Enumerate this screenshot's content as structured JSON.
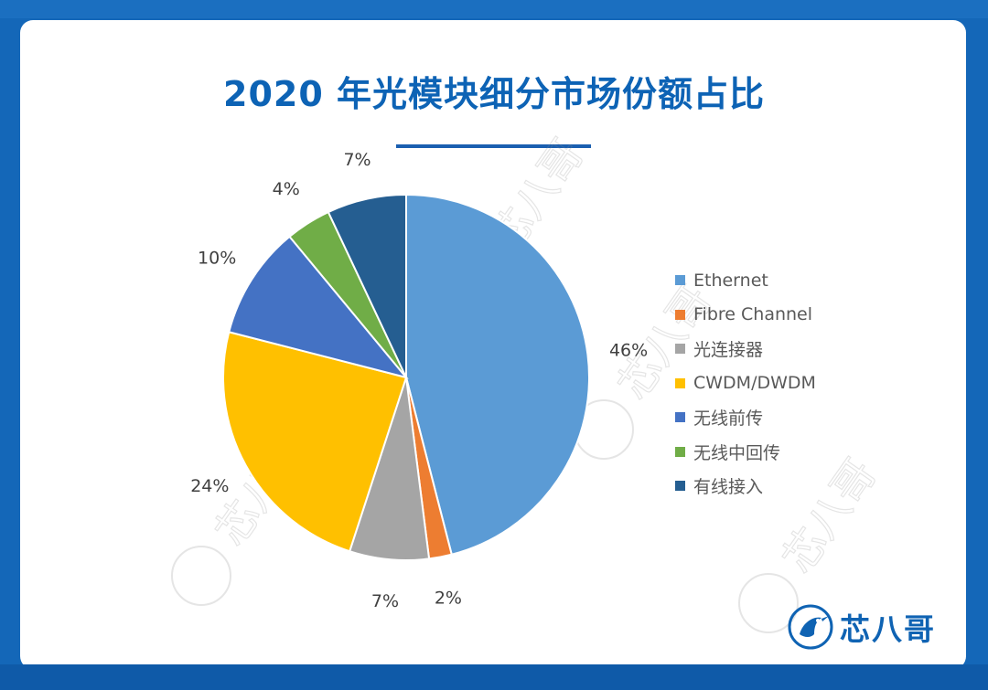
{
  "title": "2020 年光模块细分市场份额占比",
  "colors": {
    "background": "#1467b8",
    "title": "#0d63b5",
    "label": "#404040"
  },
  "chart_data": {
    "type": "pie",
    "title": "2020 年光模块细分市场份额占比",
    "legend_position": "right",
    "slices": [
      {
        "name": "Ethernet",
        "value": 46,
        "label": "46%",
        "color": "#5b9bd5"
      },
      {
        "name": "Fibre Channel",
        "value": 2,
        "label": "2%",
        "color": "#ed7d31"
      },
      {
        "name": "光连接器",
        "value": 7,
        "label": "7%",
        "color": "#a5a5a5"
      },
      {
        "name": "CWDM/DWDM",
        "value": 24,
        "label": "24%",
        "color": "#ffc000"
      },
      {
        "name": "无线前传",
        "value": 10,
        "label": "10%",
        "color": "#4472c4"
      },
      {
        "name": "无线中回传",
        "value": 4,
        "label": "4%",
        "color": "#70ad47"
      },
      {
        "name": "有线接入",
        "value": 7,
        "label": "7%",
        "color": "#255e91"
      }
    ]
  },
  "watermark": "芯八哥",
  "logo": {
    "text": "芯八哥",
    "icon": "kingfisher-bird-icon"
  }
}
